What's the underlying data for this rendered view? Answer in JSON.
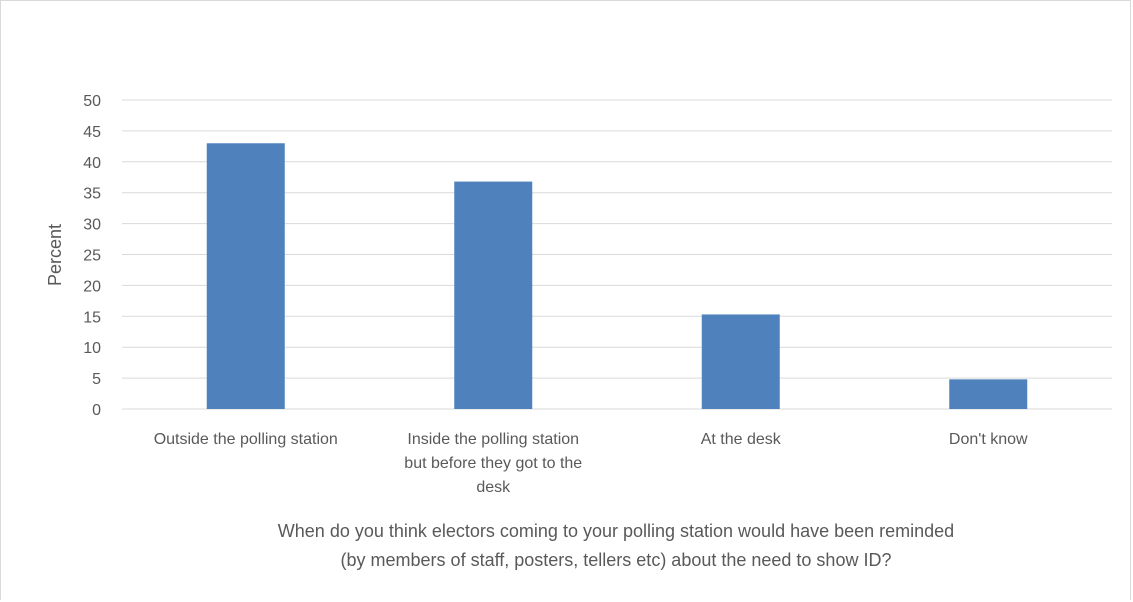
{
  "chart_data": {
    "type": "bar",
    "categories": [
      [
        "Outside the polling station"
      ],
      [
        "Inside the polling station",
        "but before they got to the",
        "desk"
      ],
      [
        "At the desk"
      ],
      [
        "Don't know"
      ]
    ],
    "values": [
      43,
      36.8,
      15.3,
      4.8
    ],
    "xlabel": [
      "When do you think electors coming to your polling station would have been reminded",
      "(by members of staff, posters, tellers etc) about the need to show ID?"
    ],
    "ylabel": "Percent",
    "ylim": [
      0,
      50
    ],
    "yticks": [
      "0",
      "5",
      "10",
      "15",
      "20",
      "25",
      "30",
      "35",
      "40",
      "45",
      "50"
    ],
    "grid": true,
    "legend": "none",
    "bar_color": "#4f81bd",
    "grid_color": "#d9d9d9"
  }
}
